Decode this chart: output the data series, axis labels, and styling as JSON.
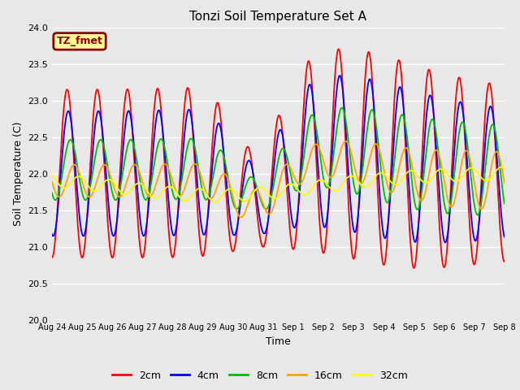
{
  "title": "Tonzi Soil Temperature Set A",
  "xlabel": "Time",
  "ylabel": "Soil Temperature (C)",
  "ylim": [
    20.0,
    24.0
  ],
  "yticks": [
    20.0,
    20.5,
    21.0,
    21.5,
    22.0,
    22.5,
    23.0,
    23.5,
    24.0
  ],
  "label_box_text": "TZ_fmet",
  "label_box_facecolor": "#FFFF99",
  "label_box_edgecolor": "#8B0000",
  "label_box_textcolor": "#8B0000",
  "line_colors": {
    "2cm": "#FF0000",
    "4cm": "#0000FF",
    "8cm": "#00BB00",
    "16cm": "#FFA500",
    "32cm": "#FFFF00"
  },
  "line_width": 1.3,
  "background_color": "#E8E8E8",
  "plot_bg_color": "#E8E8E8",
  "grid_color": "#FFFFFF",
  "n_days": 15,
  "points_per_day": 96,
  "base_temp": 22.0,
  "xtick_labels": [
    "Aug 24",
    "Aug 25",
    "Aug 26",
    "Aug 27",
    "Aug 28",
    "Aug 29",
    "Aug 30",
    "Aug 31",
    "Sep 1",
    "Sep 2",
    "Sep 3",
    "Sep 4",
    "Sep 5",
    "Sep 6",
    "Sep 7",
    "Sep 8"
  ]
}
